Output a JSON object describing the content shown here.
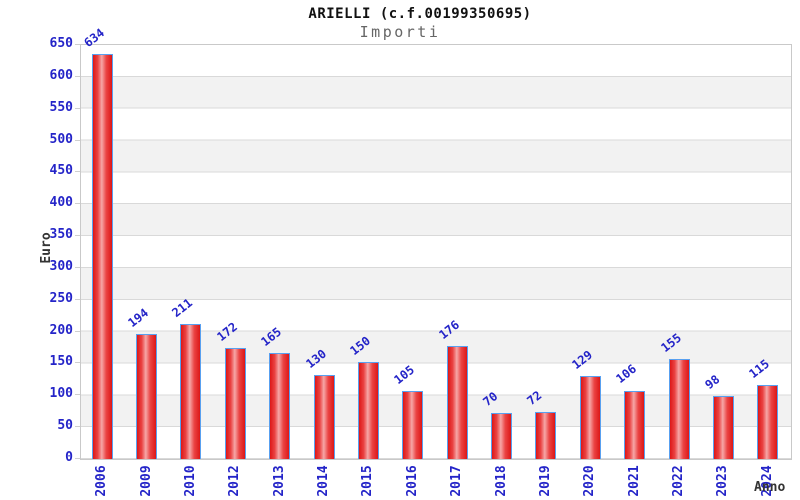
{
  "chart_data": {
    "type": "bar",
    "title": "ARIELLI (c.f.00199350695)",
    "subtitle": "Importi",
    "xlabel": "Anno",
    "ylabel": "Euro",
    "categories": [
      "2006",
      "2009",
      "2010",
      "2012",
      "2013",
      "2014",
      "2015",
      "2016",
      "2017",
      "2018",
      "2019",
      "2020",
      "2021",
      "2022",
      "2023",
      "2024"
    ],
    "values": [
      634,
      194,
      211,
      172,
      165,
      130,
      150,
      105,
      176,
      70,
      72,
      129,
      106,
      155,
      98,
      115
    ],
    "ylim": [
      0,
      650
    ],
    "ytick_step": 50,
    "grid": "horizontal-bands",
    "legend": "none",
    "colors": {
      "bar_fill": "#dd1717",
      "bar_highlight": "#f6a6a6",
      "bar_border": "#58a0f0",
      "axis_text": "#2424c8",
      "value_label": "#2424c8",
      "band": "#f2f2f2",
      "gridline": "#d9d9d9",
      "plot_border": "#c9c9c9",
      "title": "#111111",
      "subtitle": "#666666",
      "axis_title": "#333333"
    }
  }
}
